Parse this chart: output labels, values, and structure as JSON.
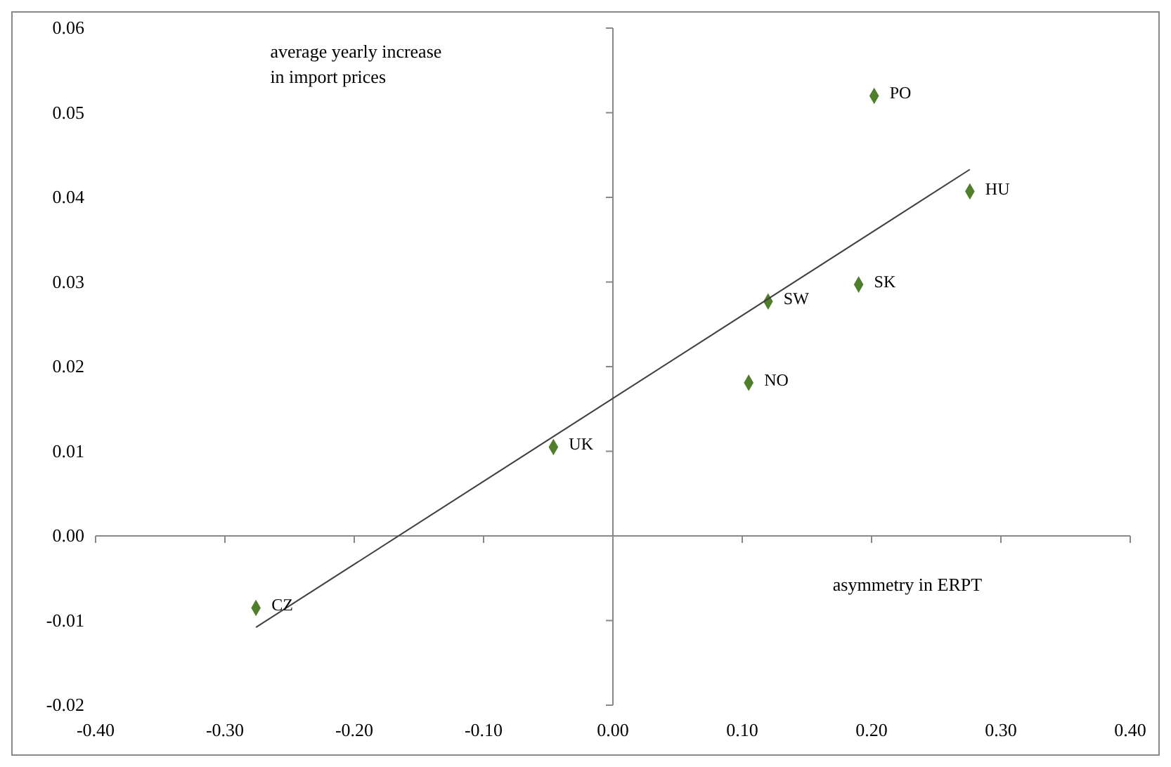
{
  "chart_data": {
    "type": "scatter",
    "xlabel": "asymmetry in ERPT",
    "ylabel": "average yearly increase\nin import prices",
    "series": [
      {
        "marker": "diamond",
        "color": "#4f7f2a",
        "x": [
          0.202,
          0.276,
          0.19,
          0.12,
          0.105,
          -0.046,
          -0.276
        ],
        "values": [
          0.052,
          0.0407,
          0.0297,
          0.0277,
          0.0181,
          0.0105,
          -0.0085
        ]
      },
      {
        "type": "line",
        "color": "#404040",
        "x": [
          -0.276,
          0.276
        ],
        "values": [
          -0.0108,
          0.0433
        ],
        "marker": "none"
      }
    ],
    "annotations": [
      {
        "text": "PO",
        "x": 0.202,
        "y": 0.052
      },
      {
        "text": "HU",
        "x": 0.276,
        "y": 0.0407
      },
      {
        "text": "SK",
        "x": 0.19,
        "y": 0.0297
      },
      {
        "text": "SW",
        "x": 0.12,
        "y": 0.0277
      },
      {
        "text": "NO",
        "x": 0.105,
        "y": 0.0181
      },
      {
        "text": "UK",
        "x": -0.046,
        "y": 0.0105
      },
      {
        "text": "CZ",
        "x": -0.276,
        "y": -0.0085
      }
    ],
    "xlim": [
      -0.4,
      0.4
    ],
    "xticks": [
      {
        "value": -0.4,
        "label": "-0.40"
      },
      {
        "value": -0.3,
        "label": "-0.30"
      },
      {
        "value": -0.2,
        "label": "-0.20"
      },
      {
        "value": -0.1,
        "label": "-0.10"
      },
      {
        "value": 0,
        "label": "0.00"
      },
      {
        "value": 0.1,
        "label": "0.10"
      },
      {
        "value": 0.2,
        "label": "0.20"
      },
      {
        "value": 0.3,
        "label": "0.30"
      },
      {
        "value": 0.4,
        "label": "0.40"
      }
    ],
    "ylim": [
      -0.02,
      0.06
    ],
    "yticks": [
      {
        "value": -0.02,
        "label": "-0.02"
      },
      {
        "value": -0.01,
        "label": "-0.01"
      },
      {
        "value": 0,
        "label": "0.00"
      },
      {
        "value": 0.01,
        "label": "0.01"
      },
      {
        "value": 0.02,
        "label": "0.02"
      },
      {
        "value": 0.03,
        "label": "0.03"
      },
      {
        "value": 0.04,
        "label": "0.04"
      },
      {
        "value": 0.05,
        "label": "0.05"
      },
      {
        "value": 0.06,
        "label": "0.06"
      }
    ]
  }
}
